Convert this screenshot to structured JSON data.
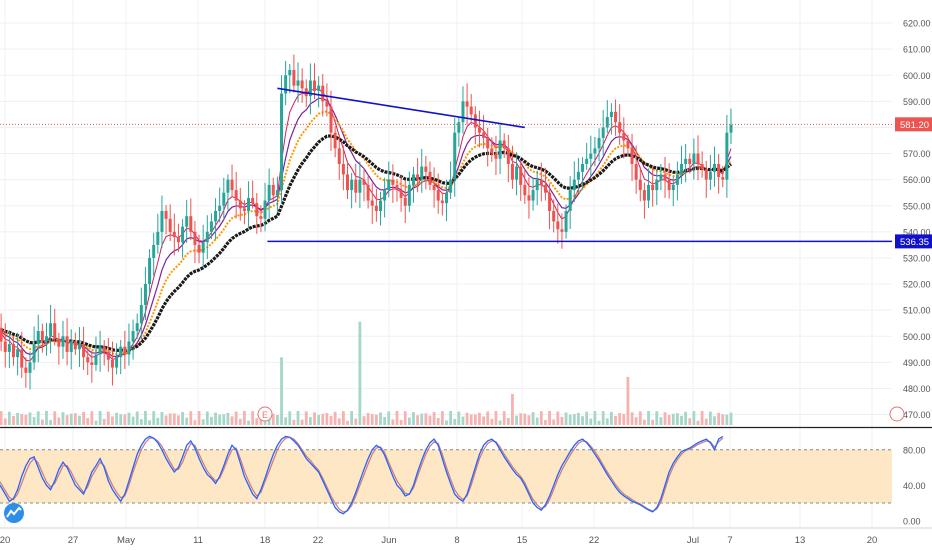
{
  "chart_data": {
    "type": "candlestick",
    "symbol_hint": "",
    "colors": {
      "up": "#26a69a",
      "down": "#ef5350",
      "ema_fast": "#d81b60",
      "ema_mid": "#7b1fa2",
      "ema_slow": "#ff9800",
      "ema_long": "#1a1a1a",
      "trendline": "#1111cc",
      "price_line": "#ef5350",
      "stoch_k": "#2962ff",
      "stoch_d": "#c77d7d",
      "stoch_band": "#fde7c4",
      "support_badge": "#1111cc"
    },
    "price_axis": {
      "min": 466,
      "max": 625,
      "ticks": [
        "620.00",
        "610.00",
        "600.00",
        "590.00",
        "580.00",
        "570.00",
        "560.00",
        "550.00",
        "540.00",
        "530.00",
        "520.00",
        "510.00",
        "500.00",
        "490.00",
        "480.00",
        "470.00"
      ]
    },
    "x_ticks": [
      "20",
      "27",
      "May",
      "11",
      "18",
      "22",
      "Jun",
      "8",
      "15",
      "22",
      "Jul",
      "7",
      "13",
      "20"
    ],
    "last_price": {
      "value": 581.2,
      "label": "581.20"
    },
    "support": {
      "value": 536.35,
      "label": "536.35"
    },
    "resistance_trendline": {
      "start": [
        68,
        595
      ],
      "end": [
        128,
        580
      ]
    },
    "closes": [
      503,
      498,
      494,
      497,
      492,
      495,
      488,
      486,
      490,
      497,
      502,
      498,
      500,
      505,
      499,
      496,
      500,
      494,
      498,
      495,
      497,
      492,
      490,
      489,
      493,
      496,
      494,
      491,
      488,
      492,
      496,
      493,
      498,
      502,
      505,
      512,
      520,
      530,
      535,
      540,
      548,
      545,
      540,
      538,
      536,
      542,
      546,
      540,
      535,
      532,
      536,
      540,
      544,
      548,
      550,
      555,
      560,
      556,
      552,
      549,
      548,
      553,
      551,
      546,
      545,
      552,
      558,
      554,
      556,
      593,
      600,
      602,
      596,
      598,
      595,
      592,
      598,
      594,
      596,
      590,
      588,
      578,
      572,
      566,
      562,
      556,
      560,
      555,
      560,
      558,
      552,
      550,
      548,
      552,
      556,
      560,
      558,
      556,
      553,
      550,
      558,
      562,
      560,
      565,
      563,
      558,
      556,
      552,
      551,
      555,
      560,
      578,
      582,
      590,
      588,
      585,
      580,
      578,
      576,
      572,
      570,
      568,
      575,
      572,
      566,
      560,
      565,
      558,
      554,
      552,
      556,
      560,
      558,
      555,
      548,
      544,
      541,
      540,
      548,
      556,
      560,
      563,
      566,
      568,
      570,
      572,
      576,
      580,
      584,
      586,
      582,
      578,
      575,
      572,
      566,
      560,
      556,
      552,
      558,
      556,
      560,
      562,
      560,
      556,
      558,
      562,
      566,
      568,
      566,
      570,
      566,
      564,
      560,
      563,
      566,
      561,
      560,
      578,
      581
    ]
  },
  "stochastic": {
    "levels": {
      "upper": 80,
      "lower": 20,
      "mid_label": "40.00"
    },
    "ticks": [
      "80.00",
      "40.00",
      "0.00"
    ],
    "k": [
      45,
      38,
      30,
      22,
      25,
      35,
      50,
      62,
      70,
      72,
      60,
      48,
      40,
      35,
      45,
      58,
      66,
      60,
      50,
      40,
      35,
      30,
      42,
      55,
      62,
      70,
      60,
      45,
      35,
      28,
      22,
      30,
      45,
      60,
      75,
      85,
      92,
      95,
      93,
      88,
      80,
      70,
      62,
      55,
      60,
      72,
      85,
      90,
      82,
      70,
      60,
      52,
      48,
      42,
      50,
      62,
      75,
      85,
      80,
      65,
      50,
      40,
      30,
      25,
      35,
      48,
      62,
      75,
      85,
      92,
      95,
      94,
      90,
      85,
      78,
      70,
      65,
      60,
      55,
      45,
      35,
      25,
      15,
      10,
      8,
      12,
      20,
      32,
      45,
      58,
      70,
      80,
      85,
      82,
      74,
      62,
      50,
      40,
      35,
      28,
      30,
      40,
      55,
      68,
      80,
      88,
      92,
      85,
      70,
      55,
      42,
      30,
      25,
      22,
      30,
      45,
      60,
      75,
      85,
      90,
      92,
      88,
      80,
      72,
      65,
      58,
      52,
      48,
      40,
      30,
      20,
      15,
      12,
      18,
      28,
      40,
      52,
      62,
      70,
      78,
      85,
      90,
      92,
      88,
      82,
      75,
      68,
      60,
      52,
      45,
      38,
      32,
      28,
      25,
      22,
      20,
      18,
      15,
      12,
      10,
      15,
      25,
      40,
      55,
      65,
      72,
      78,
      80,
      82,
      85,
      88,
      90,
      92,
      88,
      80,
      92,
      95
    ],
    "d": [
      48,
      42,
      34,
      26,
      24,
      30,
      42,
      55,
      65,
      70,
      65,
      54,
      44,
      38,
      42,
      52,
      62,
      62,
      55,
      45,
      38,
      32,
      38,
      50,
      58,
      66,
      62,
      50,
      40,
      32,
      26,
      28,
      40,
      55,
      68,
      80,
      88,
      93,
      93,
      90,
      84,
      75,
      66,
      58,
      58,
      66,
      78,
      87,
      85,
      75,
      65,
      56,
      50,
      45,
      48,
      58,
      70,
      80,
      82,
      70,
      56,
      45,
      35,
      28,
      32,
      44,
      56,
      68,
      80,
      88,
      93,
      94,
      92,
      87,
      80,
      73,
      68,
      62,
      57,
      48,
      38,
      28,
      20,
      13,
      10,
      11,
      17,
      28,
      40,
      52,
      64,
      75,
      82,
      83,
      77,
      66,
      55,
      45,
      38,
      31,
      30,
      37,
      50,
      63,
      75,
      84,
      89,
      87,
      75,
      60,
      47,
      35,
      28,
      24,
      28,
      40,
      55,
      70,
      80,
      87,
      90,
      89,
      83,
      75,
      68,
      61,
      55,
      50,
      43,
      33,
      24,
      18,
      14,
      16,
      24,
      35,
      47,
      57,
      66,
      74,
      81,
      87,
      90,
      89,
      84,
      78,
      71,
      63,
      55,
      48,
      41,
      35,
      30,
      27,
      24,
      21,
      19,
      16,
      13,
      11,
      13,
      21,
      35,
      50,
      61,
      69,
      75,
      79,
      81,
      83,
      86,
      88,
      90,
      89,
      83,
      89,
      93
    ]
  }
}
